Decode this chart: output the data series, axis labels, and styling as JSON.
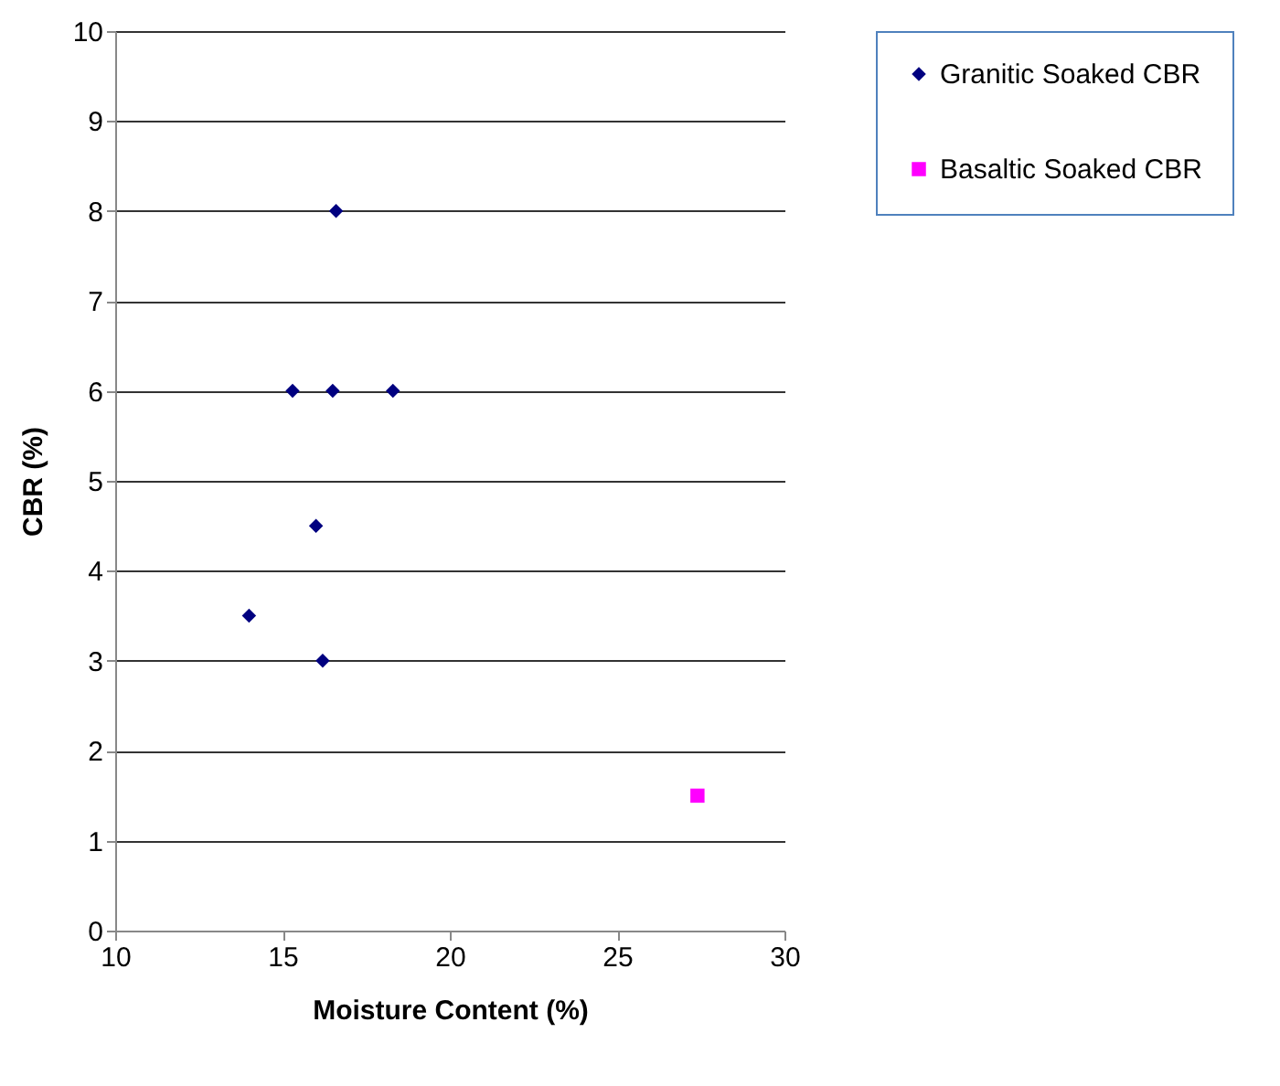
{
  "chart_data": {
    "type": "scatter",
    "xlabel": "Moisture Content (%)",
    "ylabel": "CBR (%)",
    "xlim": [
      10,
      30
    ],
    "xticks": [
      10,
      15,
      20,
      25,
      30
    ],
    "ylim": [
      0,
      10
    ],
    "yticks": [
      0,
      1,
      2,
      3,
      4,
      5,
      6,
      7,
      8,
      9,
      10
    ],
    "grid": "y",
    "legend": "right",
    "series": [
      {
        "name": "Granitic Soaked CBR",
        "color": "#000080",
        "marker": "diamond",
        "x": [
          16.6,
          15.3,
          16.5,
          18.3,
          16.0,
          14.0,
          16.2
        ],
        "values": [
          8,
          6,
          6,
          6,
          4.5,
          3.5,
          3
        ]
      },
      {
        "name": "Basaltic Soaked CBR",
        "color": "#ff00ff",
        "marker": "square",
        "x": [
          27.4
        ],
        "values": [
          1.5
        ]
      }
    ]
  }
}
